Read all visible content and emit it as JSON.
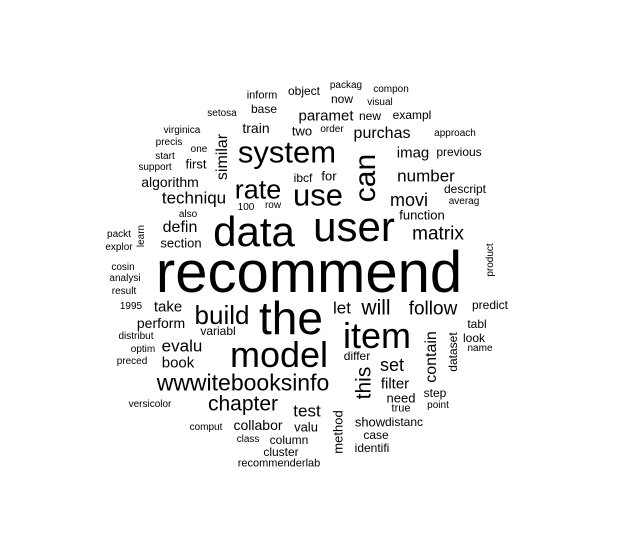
{
  "word_cloud": {
    "words": [
      "recommend",
      "the",
      "user",
      "data",
      "item",
      "model",
      "system",
      "use",
      "can",
      "rate",
      "build",
      "wwwitebooksinfo",
      "chapter",
      "matrix",
      "follow",
      "will",
      "techniqu",
      "movi",
      "number",
      "this",
      "set",
      "purchas",
      "similar",
      "let",
      "evalu",
      "defin",
      "contain",
      "test",
      "filter",
      "paramet",
      "algorithm",
      "take",
      "perform",
      "book",
      "imag",
      "train",
      "section",
      "collabor",
      "first",
      "for",
      "ibcf",
      "dataset",
      "method",
      "show",
      "need",
      "differ",
      "function",
      "descript",
      "step",
      "valu",
      "column",
      "case",
      "distanc",
      "identifi",
      "cluster",
      "recommenderlab",
      "comput",
      "class",
      "versicolor",
      "preced",
      "optim",
      "distribut",
      "result",
      "analysi",
      "cosin",
      "explor",
      "packt",
      "learn",
      "also",
      "row",
      "100",
      "support",
      "start",
      "precis",
      "virginica",
      "one",
      "setosa",
      "base",
      "inform",
      "object",
      "packag",
      "now",
      "compon",
      "visual",
      "new",
      "exampl",
      "two",
      "order",
      "approach",
      "previous",
      "averag",
      "product",
      "predict",
      "tabl",
      "look",
      "name",
      "true",
      "point",
      "1995",
      "variabl"
    ]
  }
}
